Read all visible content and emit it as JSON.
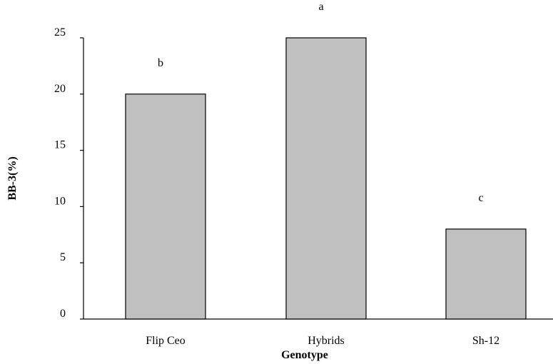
{
  "chart_data": {
    "type": "bar",
    "categories": [
      "Flip Ceo",
      "Hybrids",
      "Sh-12"
    ],
    "values": [
      20,
      25,
      8
    ],
    "significance_letters": [
      "b",
      "a",
      "c"
    ],
    "xlabel": "Genotype",
    "ylabel": "BB-3(%)",
    "ylim": [
      0,
      25
    ],
    "yticks": [
      0,
      5,
      10,
      15,
      20,
      25
    ],
    "bar_color": "#c0c0c0",
    "grid": false,
    "legend": "none"
  }
}
